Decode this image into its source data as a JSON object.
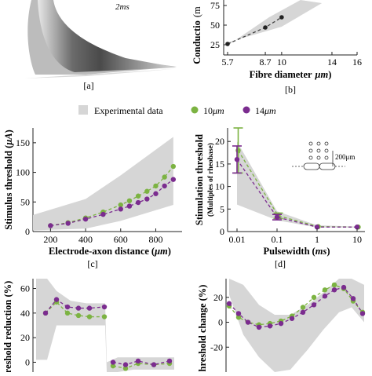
{
  "figure": {
    "legend": {
      "experimental": "Experimental data",
      "s10": "10",
      "s14": "14",
      "unit": "μm"
    },
    "colors": {
      "green": "#7cb342",
      "purple": "#7b2c8f",
      "band": "#d6d6d6",
      "axis": "#222222"
    },
    "panel_a": {
      "label": "[a]",
      "time_annotation": "2ms"
    },
    "panel_b": {
      "label": "[b]",
      "ylabel_visible": "Conductio",
      "ylabel_unit_fragment": "(m",
      "xlabel": "Fibre diameter",
      "xunit": "μm",
      "xticks": [
        "5.7",
        "8.7",
        "10",
        "14",
        "16"
      ],
      "yticks": [
        "75",
        "50",
        "25"
      ]
    },
    "panel_c": {
      "label": "[c]",
      "ylabel": "Stimulus threshold (μA)",
      "xlabel": "Electrode-axon distance",
      "xunit": "μm",
      "xticks": [
        "200",
        "400",
        "600",
        "800"
      ],
      "yticks": [
        "0",
        "50",
        "100",
        "150"
      ]
    },
    "panel_d": {
      "label": "[d]",
      "ylabel_1": "Stimulation threshold",
      "ylabel_2": "(Multiples of rheobase)",
      "xlabel": "Pulsewidth",
      "xunit": "ms",
      "xticks": [
        "0.01",
        "0.1",
        "1",
        "10"
      ],
      "yticks": [
        "0",
        "5",
        "10",
        "15",
        "20"
      ],
      "inset_label": "200μm"
    },
    "panel_e": {
      "ylabel": "hreshold reduction (%)",
      "yticks": [
        "60",
        "40",
        "20",
        "0"
      ]
    },
    "panel_f": {
      "ylabel": "hreshold change (%)",
      "yticks": [
        "20",
        "0",
        "-20"
      ]
    }
  },
  "chart_data": [
    {
      "type": "line",
      "panel": "b",
      "x": [
        5.7,
        8.7,
        10
      ],
      "series": [
        {
          "values": [
            26,
            47,
            60
          ]
        }
      ],
      "xlim": [
        5.7,
        16
      ],
      "ylim": [
        12,
        82
      ]
    },
    {
      "type": "line",
      "panel": "c",
      "x": [
        200,
        300,
        400,
        500,
        600,
        650,
        700,
        750,
        800,
        850,
        900
      ],
      "series": [
        {
          "name": "10μm",
          "values": [
            10,
            15,
            23,
            33,
            45,
            52,
            60,
            68,
            77,
            92,
            110
          ]
        },
        {
          "name": "14μm",
          "values": [
            10,
            14,
            21,
            29,
            38,
            43,
            49,
            55,
            64,
            77,
            88
          ]
        }
      ],
      "band": {
        "x": [
          100,
          400,
          600,
          900
        ],
        "lower": [
          2,
          5,
          18,
          45
        ],
        "upper": [
          28,
          55,
          95,
          160
        ]
      },
      "xlim": [
        100,
        950
      ],
      "ylim": [
        0,
        175
      ]
    },
    {
      "type": "line",
      "panel": "d",
      "x": [
        0.01,
        0.1,
        1,
        10
      ],
      "xscale": "log",
      "series": [
        {
          "name": "10μm",
          "values": [
            18,
            3.5,
            1.1,
            1.0
          ],
          "error": [
            5,
            0.6,
            0,
            0
          ]
        },
        {
          "name": "14μm",
          "values": [
            16,
            3.2,
            1.0,
            1.0
          ],
          "error": [
            3,
            0.6,
            0,
            0
          ]
        }
      ],
      "band": {
        "x": [
          0.01,
          0.1,
          1,
          10
        ],
        "lower": [
          6,
          2.5,
          0.9,
          0.9
        ],
        "upper": [
          20,
          4.5,
          1.4,
          1.1
        ]
      },
      "ylim": [
        0,
        23
      ]
    },
    {
      "type": "line",
      "panel": "e",
      "series": [
        {
          "name": "10μm",
          "values": [
            40,
            49,
            40,
            38,
            37,
            37,
            -3,
            -5,
            -1,
            -2,
            -1
          ]
        },
        {
          "name": "14μm",
          "values": [
            40,
            51,
            45,
            44,
            44,
            45,
            0,
            -2,
            1,
            -2,
            1
          ]
        }
      ],
      "ylim": [
        -8,
        68
      ]
    },
    {
      "type": "line",
      "panel": "f",
      "series": [
        {
          "name": "10μm",
          "values": [
            13,
            4,
            0,
            -2,
            -1,
            1,
            5,
            12,
            20,
            26,
            30,
            27,
            17,
            8
          ]
        },
        {
          "name": "14μm",
          "values": [
            15,
            7,
            0,
            -4,
            -3,
            -1,
            3,
            8,
            14,
            21,
            26,
            28,
            19,
            7
          ]
        }
      ],
      "ylim": [
        -40,
        35
      ]
    }
  ]
}
